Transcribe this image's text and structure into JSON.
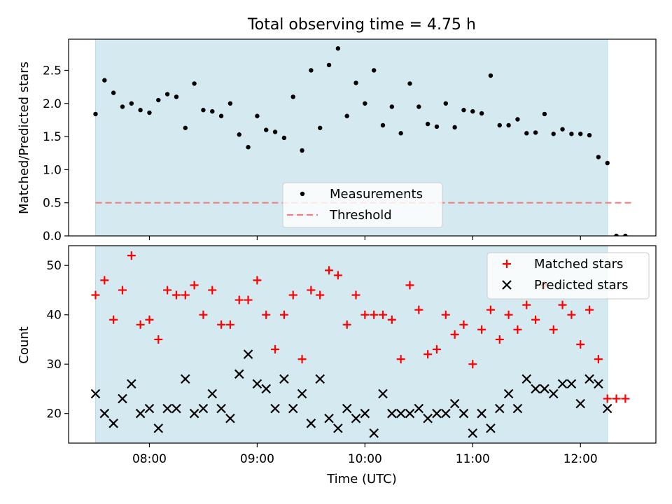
{
  "chart_data": [
    {
      "type": "scatter",
      "title": "Total observing time = 4.75 h",
      "xlabel": "",
      "ylabel": "Matched/Predicted stars",
      "x_unit": "UTC time",
      "xlim": [
        "07:15",
        "12:42"
      ],
      "ylim": [
        0,
        2.97
      ],
      "yticks": [
        "0.0",
        "0.5",
        "1.0",
        "1.5",
        "2.0",
        "2.5"
      ],
      "shaded_span": [
        "07:30",
        "12:15"
      ],
      "shaded_color": "#d4eaf0",
      "legend": "lower-center",
      "series": [
        {
          "name": "Measurements",
          "color": "#000000",
          "marker": "dot",
          "x": [
            "07:30",
            "07:35",
            "07:40",
            "07:45",
            "07:50",
            "07:55",
            "08:00",
            "08:05",
            "08:10",
            "08:15",
            "08:20",
            "08:25",
            "08:30",
            "08:35",
            "08:40",
            "08:45",
            "08:50",
            "08:55",
            "09:00",
            "09:05",
            "09:10",
            "09:15",
            "09:20",
            "09:25",
            "09:30",
            "09:35",
            "09:40",
            "09:45",
            "09:50",
            "09:55",
            "10:00",
            "10:05",
            "10:10",
            "10:15",
            "10:20",
            "10:25",
            "10:30",
            "10:35",
            "10:40",
            "10:45",
            "10:50",
            "10:55",
            "11:00",
            "11:05",
            "11:10",
            "11:15",
            "11:20",
            "11:25",
            "11:30",
            "11:35",
            "11:40",
            "11:45",
            "11:50",
            "11:55",
            "12:00",
            "12:05",
            "12:10",
            "12:15",
            "12:20",
            "12:25"
          ],
          "y": [
            1.84,
            2.35,
            2.16,
            1.95,
            2.0,
            1.9,
            1.86,
            2.05,
            2.14,
            2.1,
            1.63,
            2.3,
            1.9,
            1.88,
            1.81,
            2.0,
            1.53,
            1.34,
            1.81,
            1.6,
            1.57,
            1.48,
            2.1,
            1.29,
            2.5,
            1.63,
            2.58,
            2.83,
            1.81,
            2.31,
            2.0,
            2.5,
            1.67,
            1.95,
            1.55,
            2.3,
            1.95,
            1.69,
            1.65,
            2.0,
            1.64,
            1.9,
            1.88,
            1.85,
            2.42,
            1.67,
            1.67,
            1.76,
            1.55,
            1.56,
            1.84,
            1.54,
            1.61,
            1.54,
            1.54,
            1.52,
            1.19,
            1.1,
            0.0,
            0.0
          ]
        },
        {
          "name": "Threshold",
          "color": "#f08080",
          "style": "dashed",
          "x": [
            "07:30",
            "12:30"
          ],
          "y": [
            0.5,
            0.5
          ]
        }
      ]
    },
    {
      "type": "scatter",
      "title": "",
      "xlabel": "Time (UTC)",
      "ylabel": "Count",
      "x_unit": "UTC time",
      "xlim": [
        "07:15",
        "12:42"
      ],
      "ylim": [
        14,
        54
      ],
      "xticks": [
        "08:00",
        "09:00",
        "10:00",
        "11:00",
        "12:00"
      ],
      "yticks": [
        "20",
        "30",
        "40",
        "50"
      ],
      "shaded_span": [
        "07:30",
        "12:15"
      ],
      "shaded_color": "#d4eaf0",
      "legend": "top-right",
      "series": [
        {
          "name": "Matched stars",
          "color": "#ff0000",
          "marker": "plus",
          "x": [
            "07:30",
            "07:35",
            "07:40",
            "07:45",
            "07:50",
            "07:55",
            "08:00",
            "08:05",
            "08:10",
            "08:15",
            "08:20",
            "08:25",
            "08:30",
            "08:35",
            "08:40",
            "08:45",
            "08:50",
            "08:55",
            "09:00",
            "09:05",
            "09:10",
            "09:15",
            "09:20",
            "09:25",
            "09:30",
            "09:35",
            "09:40",
            "09:45",
            "09:50",
            "09:55",
            "10:00",
            "10:05",
            "10:10",
            "10:15",
            "10:20",
            "10:25",
            "10:30",
            "10:35",
            "10:40",
            "10:45",
            "10:50",
            "10:55",
            "11:00",
            "11:05",
            "11:10",
            "11:15",
            "11:20",
            "11:25",
            "11:30",
            "11:35",
            "11:40",
            "11:45",
            "11:50",
            "11:55",
            "12:00",
            "12:05",
            "12:10",
            "12:15",
            "12:20",
            "12:25"
          ],
          "y": [
            44,
            47,
            39,
            45,
            52,
            38,
            39,
            35,
            45,
            44,
            44,
            46,
            40,
            45,
            38,
            38,
            43,
            43,
            47,
            40,
            33,
            40,
            44,
            31,
            45,
            44,
            49,
            48,
            38,
            44,
            40,
            40,
            40,
            39,
            31,
            46,
            41,
            32,
            33,
            40,
            36,
            38,
            30,
            37,
            41,
            35,
            40,
            37,
            42,
            39,
            46,
            37,
            42,
            40,
            34,
            41,
            31,
            23,
            23,
            23
          ]
        },
        {
          "name": "Predicted stars",
          "color": "#000000",
          "marker": "x",
          "x": [
            "07:30",
            "07:35",
            "07:40",
            "07:45",
            "07:50",
            "07:55",
            "08:00",
            "08:05",
            "08:10",
            "08:15",
            "08:20",
            "08:25",
            "08:30",
            "08:35",
            "08:40",
            "08:45",
            "08:50",
            "08:55",
            "09:00",
            "09:05",
            "09:10",
            "09:15",
            "09:20",
            "09:25",
            "09:30",
            "09:35",
            "09:40",
            "09:45",
            "09:50",
            "09:55",
            "10:00",
            "10:05",
            "10:10",
            "10:15",
            "10:20",
            "10:25",
            "10:30",
            "10:35",
            "10:40",
            "10:45",
            "10:50",
            "10:55",
            "11:00",
            "11:05",
            "11:10",
            "11:15",
            "11:20",
            "11:25",
            "11:30",
            "11:35",
            "11:40",
            "11:45",
            "11:50",
            "11:55",
            "12:00",
            "12:05",
            "12:10",
            "12:15"
          ],
          "y": [
            24,
            20,
            18,
            23,
            26,
            20,
            21,
            17,
            21,
            21,
            27,
            20,
            21,
            24,
            21,
            19,
            28,
            32,
            26,
            25,
            21,
            27,
            21,
            24,
            18,
            27,
            19,
            17,
            21,
            19,
            20,
            16,
            24,
            20,
            20,
            20,
            21,
            19,
            20,
            20,
            22,
            20,
            16,
            20,
            17,
            21,
            24,
            21,
            27,
            25,
            25,
            24,
            26,
            26,
            22,
            27,
            26,
            21
          ]
        }
      ]
    }
  ]
}
